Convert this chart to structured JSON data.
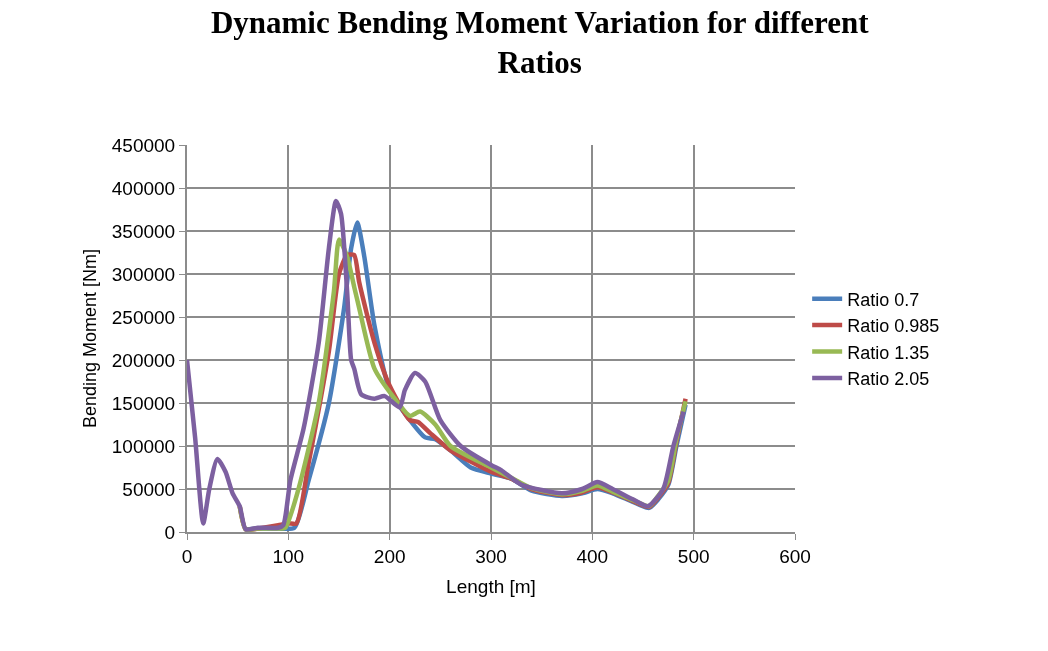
{
  "chart_data": {
    "type": "line",
    "title": "Dynamic Bending Moment Variation for different Ratios",
    "xlabel": "Length [m]",
    "ylabel": "Bending Moment [Nm]",
    "xlim": [
      0,
      600
    ],
    "xticks": [
      0,
      100,
      200,
      300,
      400,
      500,
      600
    ],
    "ylim": [
      0,
      450000
    ],
    "yticks": [
      0,
      50000,
      100000,
      150000,
      200000,
      250000,
      300000,
      350000,
      400000,
      450000
    ],
    "grid": true,
    "legend": "right",
    "marker": "none",
    "line_style": "solid",
    "series": [
      {
        "name": "Ratio 0.7",
        "color": "#4a7ebb",
        "x": [
          58,
          70,
          90,
          106,
          120,
          140,
          155,
          162,
          168,
          175,
          185,
          200,
          220,
          235,
          245,
          260,
          280,
          300,
          320,
          340,
          370,
          390,
          405,
          420,
          440,
          456,
          465,
          475,
          483,
          492
        ],
        "values": [
          3000,
          4000,
          4000,
          5000,
          60000,
          150000,
          260000,
          330000,
          360000,
          320000,
          240000,
          165000,
          130000,
          110000,
          108000,
          95000,
          75000,
          68000,
          62000,
          48000,
          42000,
          45000,
          50000,
          45000,
          35000,
          28000,
          38000,
          55000,
          100000,
          148000
        ]
      },
      {
        "name": "Ratio 0.985",
        "color": "#be4b48",
        "x": [
          52,
          58,
          70,
          90,
          100,
          108,
          120,
          140,
          150,
          158,
          165,
          170,
          185,
          200,
          220,
          228,
          240,
          260,
          300,
          320,
          340,
          370,
          390,
          405,
          420,
          440,
          456,
          465,
          475,
          483,
          492
        ],
        "values": [
          30000,
          3000,
          4000,
          8000,
          10000,
          10000,
          80000,
          210000,
          300000,
          322000,
          322000,
          290000,
          220000,
          170000,
          130000,
          128000,
          115000,
          95000,
          70000,
          62000,
          50000,
          43000,
          46000,
          52000,
          46000,
          36000,
          29000,
          40000,
          57000,
          105000,
          155000
        ]
      },
      {
        "name": "Ratio 1.35",
        "color": "#98b954",
        "x": [
          52,
          58,
          70,
          90,
          97,
          110,
          130,
          145,
          150,
          158,
          165,
          170,
          185,
          205,
          220,
          230,
          245,
          260,
          300,
          320,
          340,
          370,
          390,
          405,
          420,
          440,
          456,
          465,
          475,
          483,
          492
        ],
        "values": [
          30000,
          3000,
          4000,
          4000,
          5000,
          50000,
          150000,
          280000,
          340000,
          320000,
          285000,
          260000,
          190000,
          155000,
          135000,
          140000,
          125000,
          100000,
          75000,
          63000,
          51000,
          44000,
          48000,
          54000,
          47000,
          37000,
          30000,
          42000,
          60000,
          108000,
          152000
        ]
      },
      {
        "name": "Ratio 2.05",
        "color": "#7d60a0",
        "x": [
          0,
          8,
          16,
          22,
          30,
          38,
          45,
          52,
          58,
          70,
          90,
          95,
          102,
          115,
          130,
          140,
          147,
          152,
          158,
          162,
          165,
          172,
          185,
          195,
          210,
          215,
          225,
          235,
          250,
          270,
          300,
          310,
          330,
          370,
          390,
          405,
          420,
          440,
          455,
          470,
          480,
          490
        ],
        "values": [
          200000,
          110000,
          10000,
          50000,
          85000,
          70000,
          45000,
          30000,
          3000,
          5000,
          5000,
          8000,
          60000,
          120000,
          220000,
          330000,
          385000,
          370000,
          280000,
          200000,
          190000,
          160000,
          155000,
          158000,
          145000,
          165000,
          185000,
          175000,
          130000,
          100000,
          78000,
          72000,
          55000,
          45000,
          50000,
          58000,
          50000,
          38000,
          30000,
          50000,
          100000,
          140000
        ]
      }
    ]
  }
}
